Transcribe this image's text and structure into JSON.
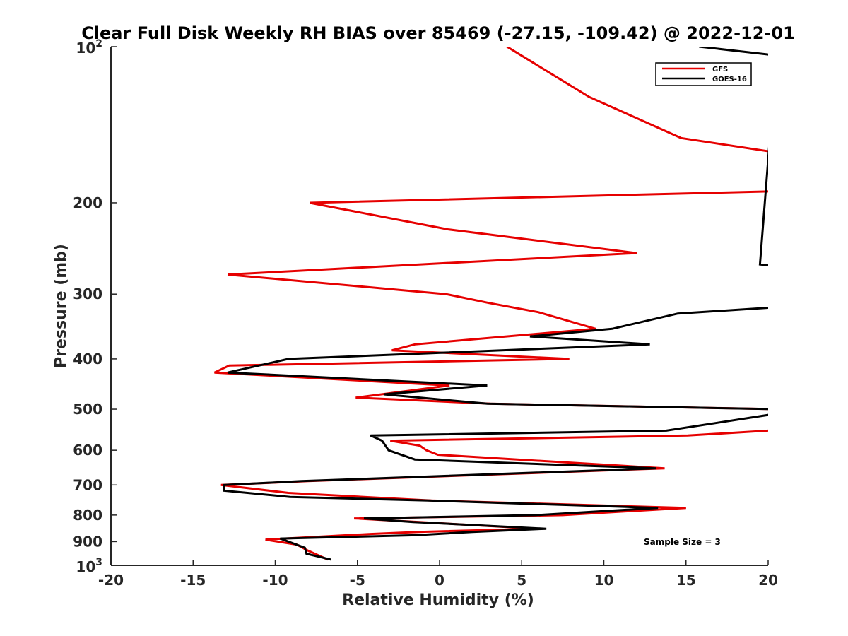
{
  "chart_data": {
    "type": "line",
    "title": "Clear Full Disk Weekly RH BIAS over 85469 (-27.15, -109.42) @ 2022-12-01",
    "xlabel": "Relative Humidity (%)",
    "ylabel": "Pressure (mb)",
    "xlim": [
      -20,
      20
    ],
    "ylim": [
      100,
      1000
    ],
    "y_scale": "log",
    "y_reversed": true,
    "grid": false,
    "legend_position": "top-right",
    "x_ticks": [
      "-20",
      "-15",
      "-10",
      "-5",
      "0",
      "5",
      "10",
      "15",
      "20"
    ],
    "y_ticks": [
      {
        "value": 100,
        "base": "10",
        "exp": "2"
      },
      {
        "value": 200,
        "label": "200"
      },
      {
        "value": 300,
        "label": "300"
      },
      {
        "value": 400,
        "label": "400"
      },
      {
        "value": 500,
        "label": "500"
      },
      {
        "value": 600,
        "label": "600"
      },
      {
        "value": 700,
        "label": "700"
      },
      {
        "value": 800,
        "label": "800"
      },
      {
        "value": 900,
        "label": "900"
      },
      {
        "value": 1000,
        "base": "10",
        "exp": "3"
      }
    ],
    "annotation": "Sample Size = 3",
    "series": [
      {
        "name": "GFS",
        "color": "#e60000",
        "points": [
          [
            4.1,
            100
          ],
          [
            9.1,
            125
          ],
          [
            14.7,
            150
          ],
          [
            20.5,
            160
          ],
          [
            20.5,
            190
          ],
          [
            -7.9,
            200
          ],
          [
            0.5,
            225
          ],
          [
            12.0,
            250
          ],
          [
            -12.9,
            275
          ],
          [
            0.4,
            300
          ],
          [
            3.0,
            312
          ],
          [
            6.0,
            325
          ],
          [
            9.5,
            350
          ],
          [
            -1.5,
            375
          ],
          [
            -2.9,
            385
          ],
          [
            7.9,
            400
          ],
          [
            -12.8,
            412
          ],
          [
            -13.7,
            425
          ],
          [
            0.6,
            450
          ],
          [
            -5.1,
            475
          ],
          [
            3.1,
            488
          ],
          [
            20.5,
            500
          ],
          [
            20.5,
            550
          ],
          [
            20.0,
            550
          ],
          [
            15.1,
            562
          ],
          [
            -3.0,
            575
          ],
          [
            -1.2,
            588
          ],
          [
            -0.8,
            600
          ],
          [
            -0.1,
            612
          ],
          [
            13.7,
            650
          ],
          [
            -8.0,
            688
          ],
          [
            -13.3,
            700
          ],
          [
            -9.2,
            725
          ],
          [
            -0.5,
            750
          ],
          [
            15.0,
            775
          ],
          [
            7.5,
            800
          ],
          [
            -5.2,
            812
          ],
          [
            6.0,
            850
          ],
          [
            -1.3,
            862
          ],
          [
            -4.2,
            870
          ],
          [
            -10.6,
            892
          ],
          [
            -8.7,
            912
          ],
          [
            -8.0,
            937
          ],
          [
            -6.8,
            975
          ]
        ]
      },
      {
        "name": "GOES-16",
        "color": "#000000",
        "points": [
          [
            15.8,
            100
          ],
          [
            20.5,
            104
          ],
          [
            19.5,
            263
          ],
          [
            20.5,
            265
          ],
          [
            20.5,
            318
          ],
          [
            14.5,
            327
          ],
          [
            10.5,
            350
          ],
          [
            5.5,
            362
          ],
          [
            12.8,
            375
          ],
          [
            -9.2,
            400
          ],
          [
            -12.9,
            425
          ],
          [
            2.9,
            450
          ],
          [
            -3.4,
            468
          ],
          [
            2.9,
            488
          ],
          [
            20.5,
            500
          ],
          [
            20.5,
            510
          ],
          [
            13.8,
            550
          ],
          [
            -4.2,
            562
          ],
          [
            -3.5,
            575
          ],
          [
            -3.1,
            600
          ],
          [
            -1.5,
            625
          ],
          [
            13.2,
            650
          ],
          [
            -8.4,
            688
          ],
          [
            -13.1,
            700
          ],
          [
            -13.1,
            718
          ],
          [
            -9.1,
            738
          ],
          [
            -0.7,
            750
          ],
          [
            13.3,
            775
          ],
          [
            5.9,
            800
          ],
          [
            -4.6,
            812
          ],
          [
            -1.6,
            825
          ],
          [
            6.5,
            850
          ],
          [
            2.0,
            862
          ],
          [
            -1.5,
            875
          ],
          [
            -9.7,
            888
          ],
          [
            -9.2,
            900
          ],
          [
            -8.2,
            925
          ],
          [
            -8.1,
            950
          ],
          [
            -6.6,
            975
          ]
        ]
      }
    ]
  }
}
